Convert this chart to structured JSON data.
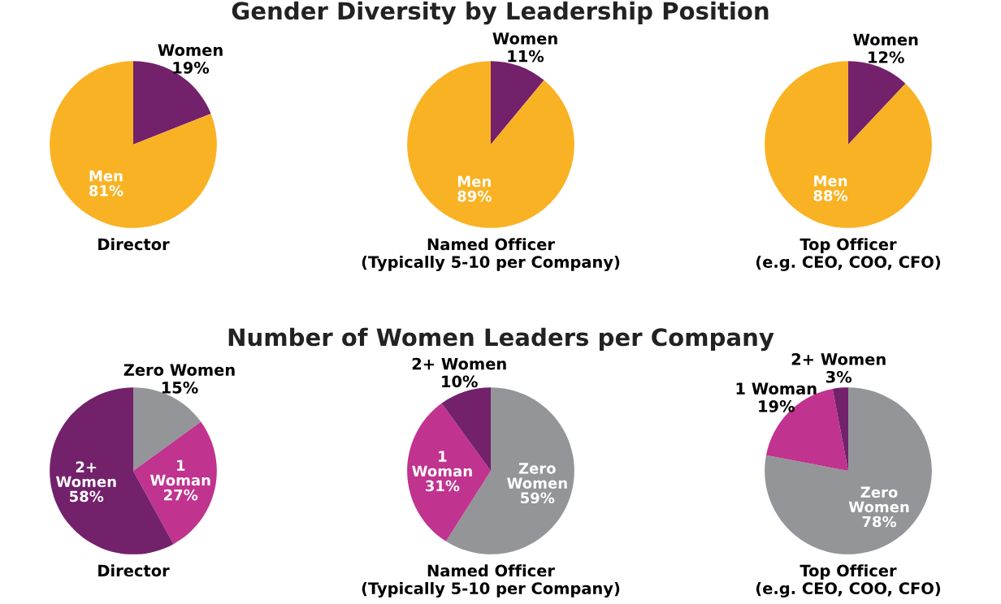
{
  "chart_data": [
    {
      "type": "pie",
      "xlabel": "Director",
      "categories": [
        "Women",
        "Men"
      ],
      "values": [
        19,
        81
      ],
      "value_labels": [
        "19%",
        "81%"
      ],
      "colors": [
        "#73216b",
        "#f9b223"
      ]
    },
    {
      "type": "pie",
      "title": "Gender Diversity by Leadership Position",
      "xlabel": "Named Officer\n(Typically 5-10 per Company)",
      "categories": [
        "Women",
        "Men"
      ],
      "values": [
        11,
        89
      ],
      "value_labels": [
        "11%",
        "89%"
      ],
      "colors": [
        "#73216b",
        "#f9b223"
      ]
    },
    {
      "type": "pie",
      "xlabel": "Top Officer\n(e.g. CEO, COO, CFO)",
      "categories": [
        "Women",
        "Men"
      ],
      "values": [
        12,
        88
      ],
      "value_labels": [
        "12%",
        "88%"
      ],
      "colors": [
        "#73216b",
        "#f9b223"
      ]
    },
    {
      "type": "pie",
      "xlabel": "Director",
      "categories": [
        "Zero Women",
        "1 Woman",
        "2+ Women"
      ],
      "values": [
        15,
        27,
        58
      ],
      "value_labels": [
        "15%",
        "27%",
        "58%"
      ],
      "colors": [
        "#939598",
        "#c0338f",
        "#73216b"
      ]
    },
    {
      "type": "pie",
      "title": "Number of Women Leaders per Company",
      "xlabel": "Named Officer\n(Typically 5-10 per Company)",
      "categories": [
        "Zero Women",
        "1 Woman",
        "2+ Women"
      ],
      "values": [
        59,
        31,
        10
      ],
      "value_labels": [
        "59%",
        "31%",
        "10%"
      ],
      "colors": [
        "#939598",
        "#c0338f",
        "#73216b"
      ]
    },
    {
      "type": "pie",
      "xlabel": "Top Officer\n(e.g. CEO, COO, CFO)",
      "categories": [
        "Zero Women",
        "1 Woman",
        "2+ Women"
      ],
      "values": [
        78,
        19,
        3
      ],
      "value_labels": [
        "78%",
        "19%",
        "3%"
      ],
      "colors": [
        "#939598",
        "#c0338f",
        "#73216b"
      ]
    }
  ]
}
